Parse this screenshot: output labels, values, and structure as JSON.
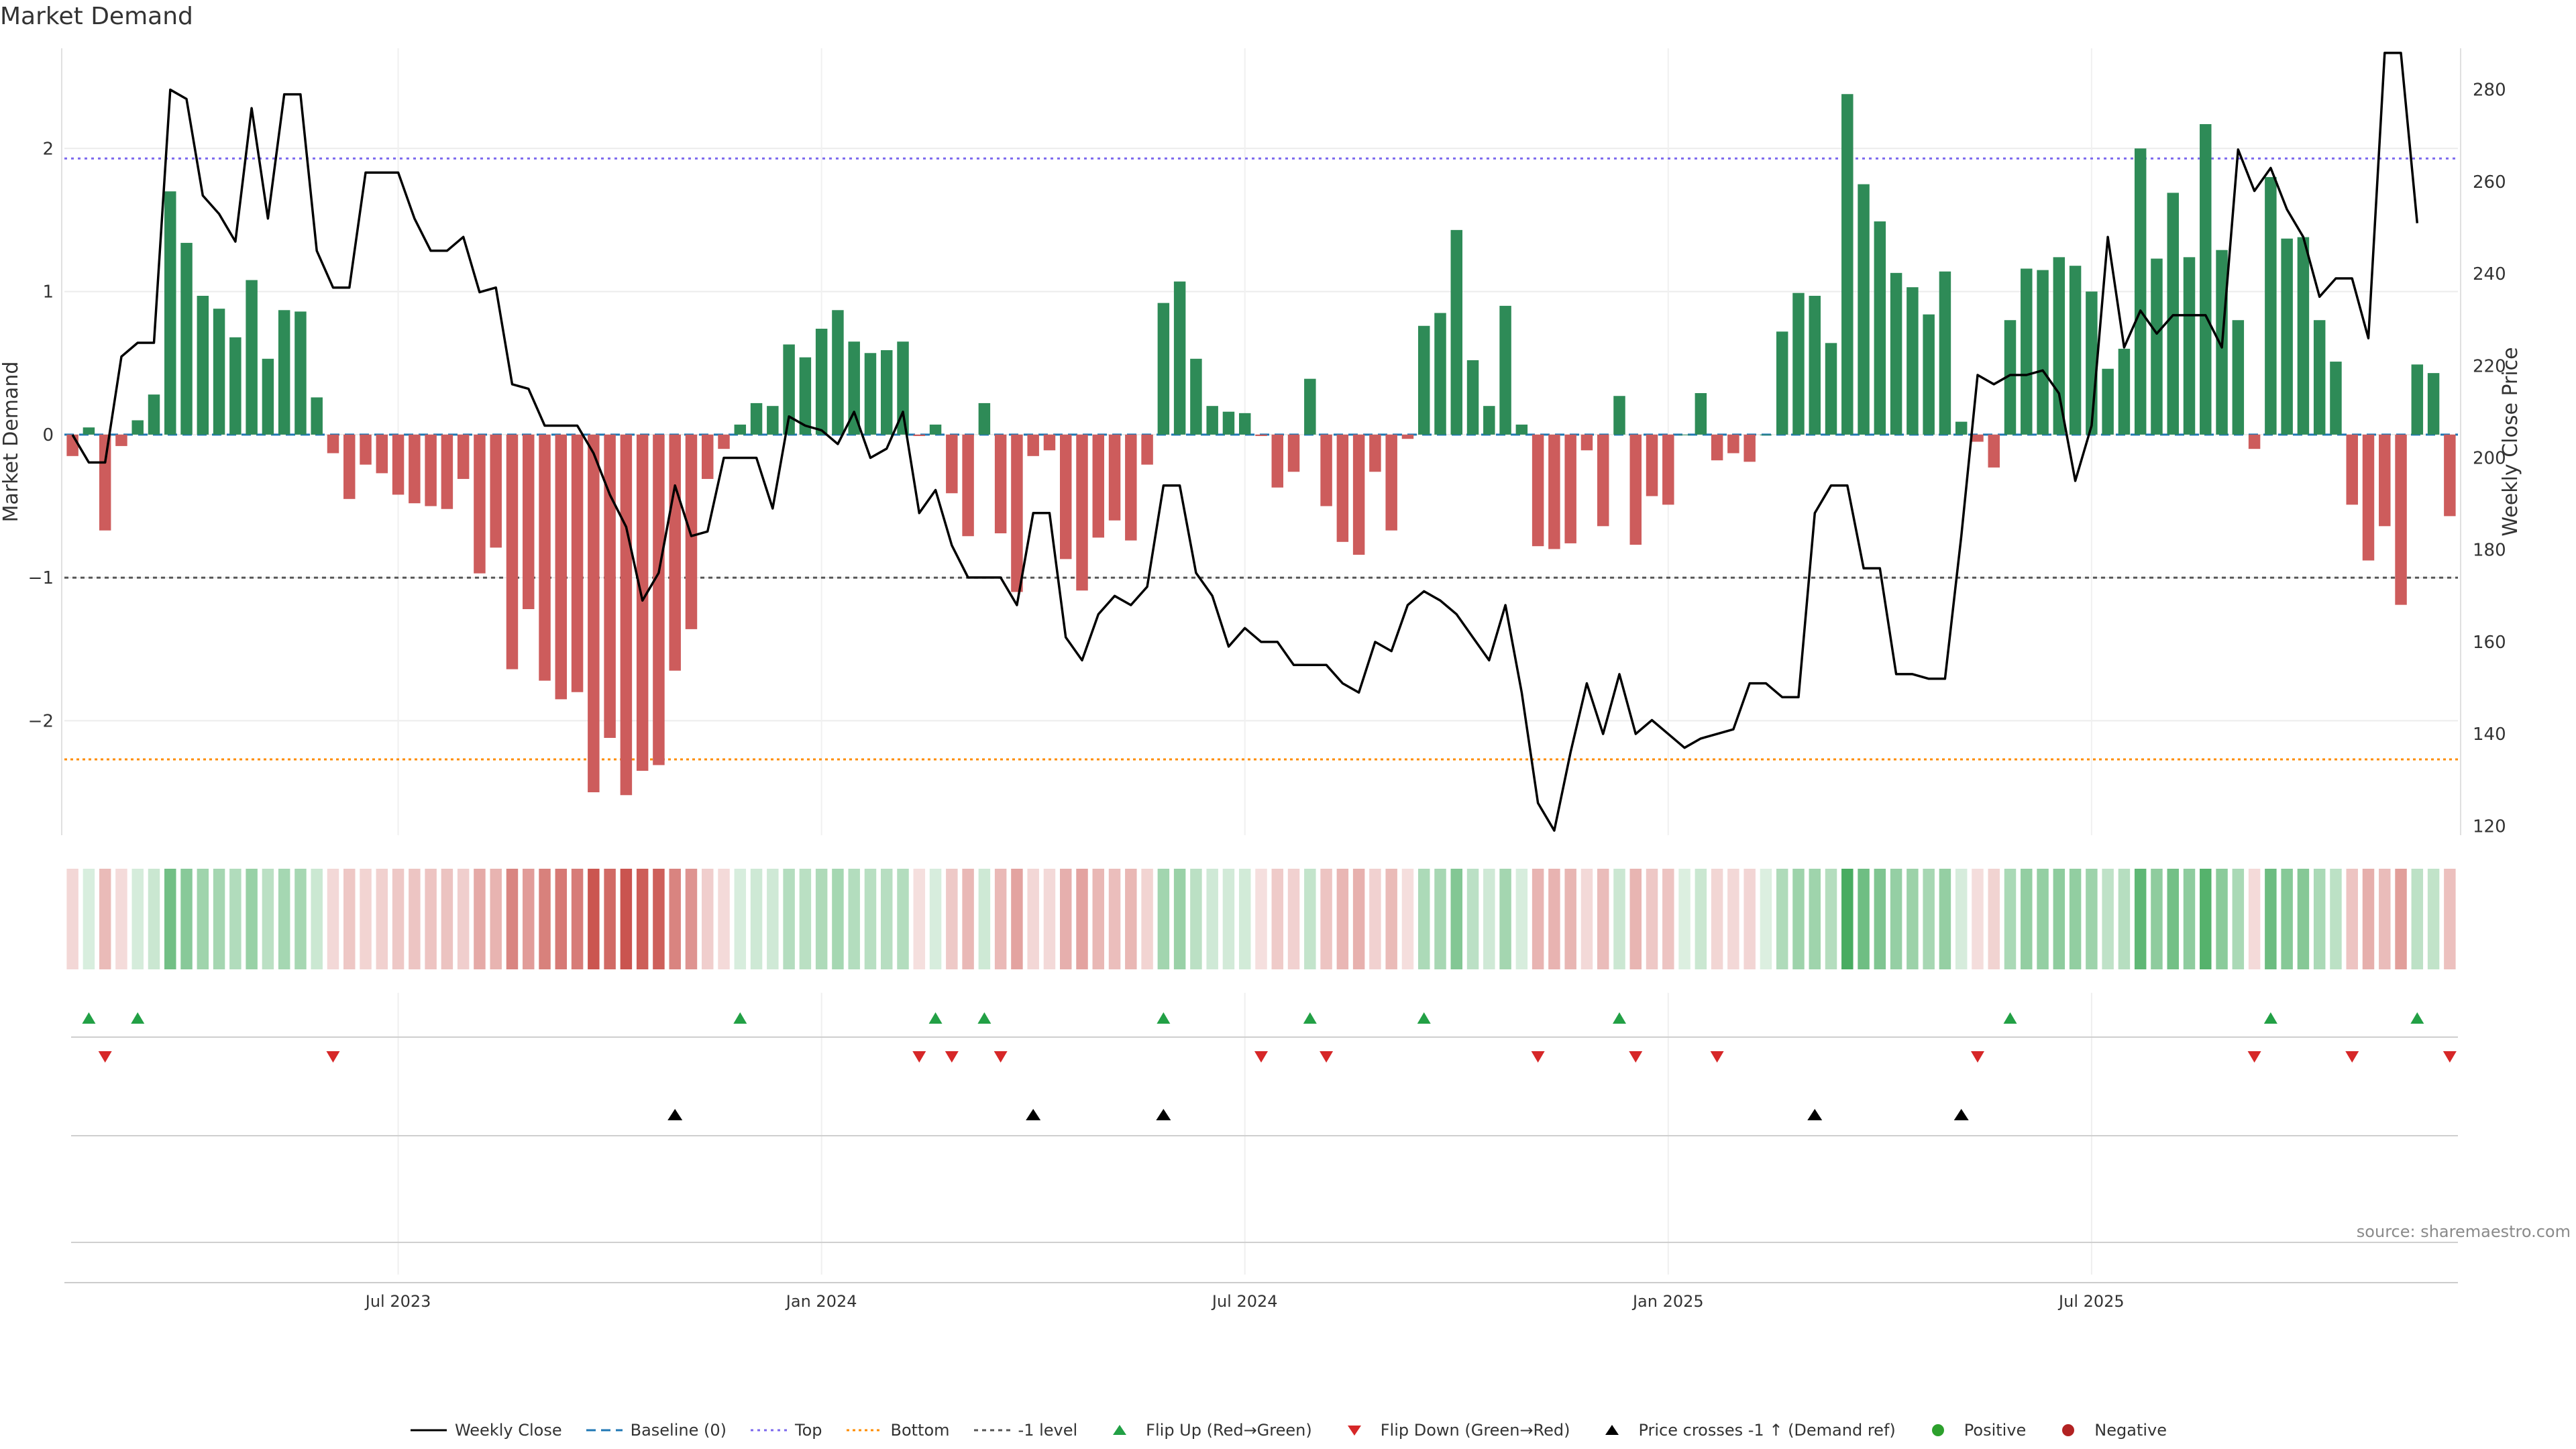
{
  "title": "Market Demand",
  "source": "source: sharemaestro.com",
  "colors": {
    "pos": "#2e8b57",
    "neg": "#cd5c5c",
    "flip_up": "#22a045",
    "flip_down": "#d62728",
    "line": "#000000",
    "baseline": "#1f77b4",
    "top": "#7b68ee",
    "bottom": "#ff8c00",
    "minus1": "#555555",
    "positive_dot": "#2ca02c",
    "negative_dot": "#b22222"
  },
  "legend": [
    {
      "key": "line",
      "label": "Weekly Close"
    },
    {
      "key": "baseline",
      "label": "Baseline (0)"
    },
    {
      "key": "top",
      "label": "Top"
    },
    {
      "key": "bottom",
      "label": "Bottom"
    },
    {
      "key": "minus1",
      "label": "-1 level"
    },
    {
      "key": "flipup",
      "label": "Flip Up (Red→Green)"
    },
    {
      "key": "flipdown",
      "label": "Flip Down (Green→Red)"
    },
    {
      "key": "cross",
      "label": "Price crosses -1 ↑ (Demand ref)"
    },
    {
      "key": "positive",
      "label": "Positive"
    },
    {
      "key": "negative",
      "label": "Negative"
    }
  ],
  "chart_data": {
    "type": "bar",
    "title": "Market Demand",
    "ylabel": "Market Demand",
    "y2label": "Weekly Close Price",
    "ylim": [
      -2.8,
      2.7
    ],
    "y2lim": [
      118,
      289
    ],
    "yticks": [
      -2,
      -1,
      0,
      1,
      2
    ],
    "y2ticks": [
      120,
      140,
      160,
      180,
      200,
      220,
      240,
      260,
      280
    ],
    "reference_lines": {
      "top": 1.93,
      "bottom": -2.27,
      "minus1": -1.0,
      "baseline": 0
    },
    "x_start": "2023-02-20",
    "x_step_weeks": 1,
    "xticks": [
      {
        "index": 20,
        "label": "Jul 2023"
      },
      {
        "index": 46,
        "label": "Jan 2024"
      },
      {
        "index": 72,
        "label": "Jul 2024"
      },
      {
        "index": 98,
        "label": "Jan 2025"
      },
      {
        "index": 124,
        "label": "Jul 2025"
      }
    ],
    "demand": [
      -0.15,
      0.05,
      -0.67,
      -0.08,
      0.1,
      0.28,
      1.7,
      1.34,
      0.97,
      0.88,
      0.68,
      1.08,
      0.53,
      0.87,
      0.86,
      0.26,
      -0.13,
      -0.45,
      -0.21,
      -0.27,
      -0.42,
      -0.48,
      -0.5,
      -0.52,
      -0.31,
      -0.97,
      -0.79,
      -1.64,
      -1.22,
      -1.72,
      -1.85,
      -1.8,
      -2.5,
      -2.12,
      -2.52,
      -2.35,
      -2.31,
      -1.65,
      -1.36,
      -0.31,
      -0.1,
      0.07,
      0.22,
      0.2,
      0.63,
      0.54,
      0.74,
      0.87,
      0.65,
      0.57,
      0.59,
      0.65,
      -0.01,
      0.07,
      -0.41,
      -0.71,
      0.22,
      -0.69,
      -1.1,
      -0.15,
      -0.11,
      -0.87,
      -1.09,
      -0.72,
      -0.6,
      -0.74,
      -0.21,
      0.92,
      1.07,
      0.53,
      0.2,
      0.16,
      0.15,
      -0.01,
      -0.37,
      -0.26,
      0.39,
      -0.5,
      -0.75,
      -0.84,
      -0.26,
      -0.67,
      -0.03,
      0.76,
      0.85,
      1.43,
      0.52,
      0.2,
      0.9,
      0.07,
      -0.78,
      -0.8,
      -0.76,
      -0.11,
      -0.64,
      0.27,
      -0.77,
      -0.43,
      -0.49,
      0.0,
      0.29,
      -0.18,
      -0.13,
      -0.19,
      0.0,
      0.72,
      0.99,
      0.97,
      0.64,
      2.38,
      1.75,
      1.49,
      1.13,
      1.03,
      0.84,
      1.14,
      0.09,
      -0.05,
      -0.23,
      0.8,
      1.16,
      1.15,
      1.24,
      1.18,
      1.0,
      0.46,
      0.6,
      2.0,
      1.23,
      1.69,
      1.24,
      2.17,
      1.29,
      0.8,
      -0.1,
      1.8,
      1.37,
      1.38,
      0.8,
      0.51,
      -0.49,
      -0.88,
      -0.64,
      -1.19,
      0.49,
      0.43,
      -0.57
    ],
    "weekly_close": [
      205,
      199,
      199,
      222,
      225,
      225,
      280,
      278,
      257,
      253,
      247,
      276,
      252,
      279,
      279,
      245,
      237,
      237,
      262,
      262,
      262,
      252,
      245,
      245,
      248,
      236,
      237,
      216,
      215,
      207,
      207,
      207,
      201,
      192,
      185,
      169,
      175,
      194,
      183,
      184,
      200,
      200,
      200,
      189,
      209,
      207,
      206,
      203,
      210,
      200,
      202,
      210,
      188,
      193,
      181,
      174,
      174,
      174,
      168,
      188,
      188,
      161,
      156,
      166,
      170,
      168,
      172,
      194,
      194,
      175,
      170,
      159,
      163,
      160,
      160,
      155,
      155,
      155,
      151,
      149,
      160,
      158,
      168,
      171,
      169,
      166,
      161,
      156,
      168,
      149,
      125,
      119,
      136,
      151,
      140,
      153,
      140,
      143,
      140,
      137,
      139,
      140,
      141,
      151,
      151,
      148,
      148,
      188,
      194,
      194,
      176,
      176,
      153,
      153,
      152,
      152,
      183,
      218,
      216,
      218,
      218,
      219,
      214,
      195,
      207,
      248,
      224,
      232,
      227,
      231,
      231,
      231,
      224,
      267,
      258,
      263,
      254,
      248,
      235,
      239,
      239,
      226,
      288,
      288,
      251
    ]
  }
}
